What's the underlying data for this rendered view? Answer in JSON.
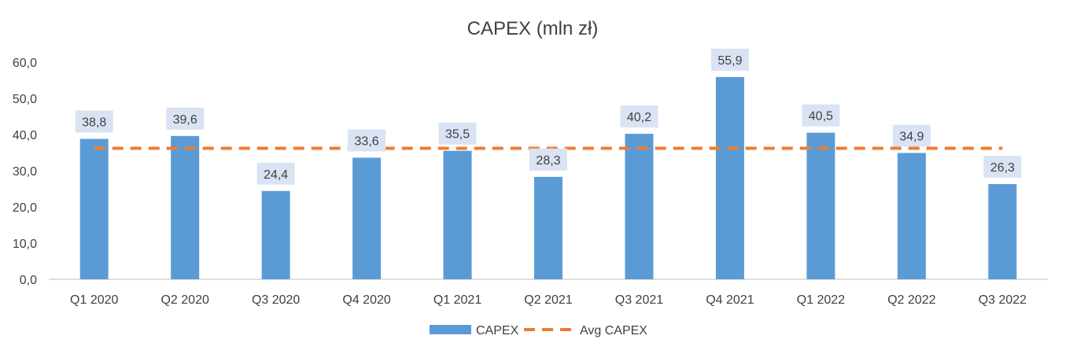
{
  "chart_data": {
    "type": "bar",
    "title": "CAPEX (mln zł)",
    "categories": [
      "Q1 2020",
      "Q2 2020",
      "Q3 2020",
      "Q4 2020",
      "Q1 2021",
      "Q2 2021",
      "Q3 2021",
      "Q4 2021",
      "Q1 2022",
      "Q2 2022",
      "Q3 2022"
    ],
    "series": [
      {
        "name": "CAPEX",
        "type": "bar",
        "values": [
          38.8,
          39.6,
          24.4,
          33.6,
          35.5,
          28.3,
          40.2,
          55.9,
          40.5,
          34.9,
          26.3
        ],
        "labels": [
          "38,8",
          "39,6",
          "24,4",
          "33,6",
          "35,5",
          "28,3",
          "40,2",
          "55,9",
          "40,5",
          "34,9",
          "26,3"
        ],
        "color": "#5B9BD5"
      },
      {
        "name": "Avg CAPEX",
        "type": "line",
        "style": "dashed",
        "values": [
          36.2,
          36.2,
          36.2,
          36.2,
          36.2,
          36.2,
          36.2,
          36.2,
          36.2,
          36.2,
          36.2
        ],
        "color": "#ED7D31"
      }
    ],
    "ylim": [
      0,
      60
    ],
    "yticks": [
      "0,0",
      "10,0",
      "20,0",
      "30,0",
      "40,0",
      "50,0",
      "60,0"
    ],
    "xlabel": "",
    "ylabel": "",
    "grid": false,
    "legend": "bottom",
    "data_label_bg": "#DAE3F3"
  }
}
